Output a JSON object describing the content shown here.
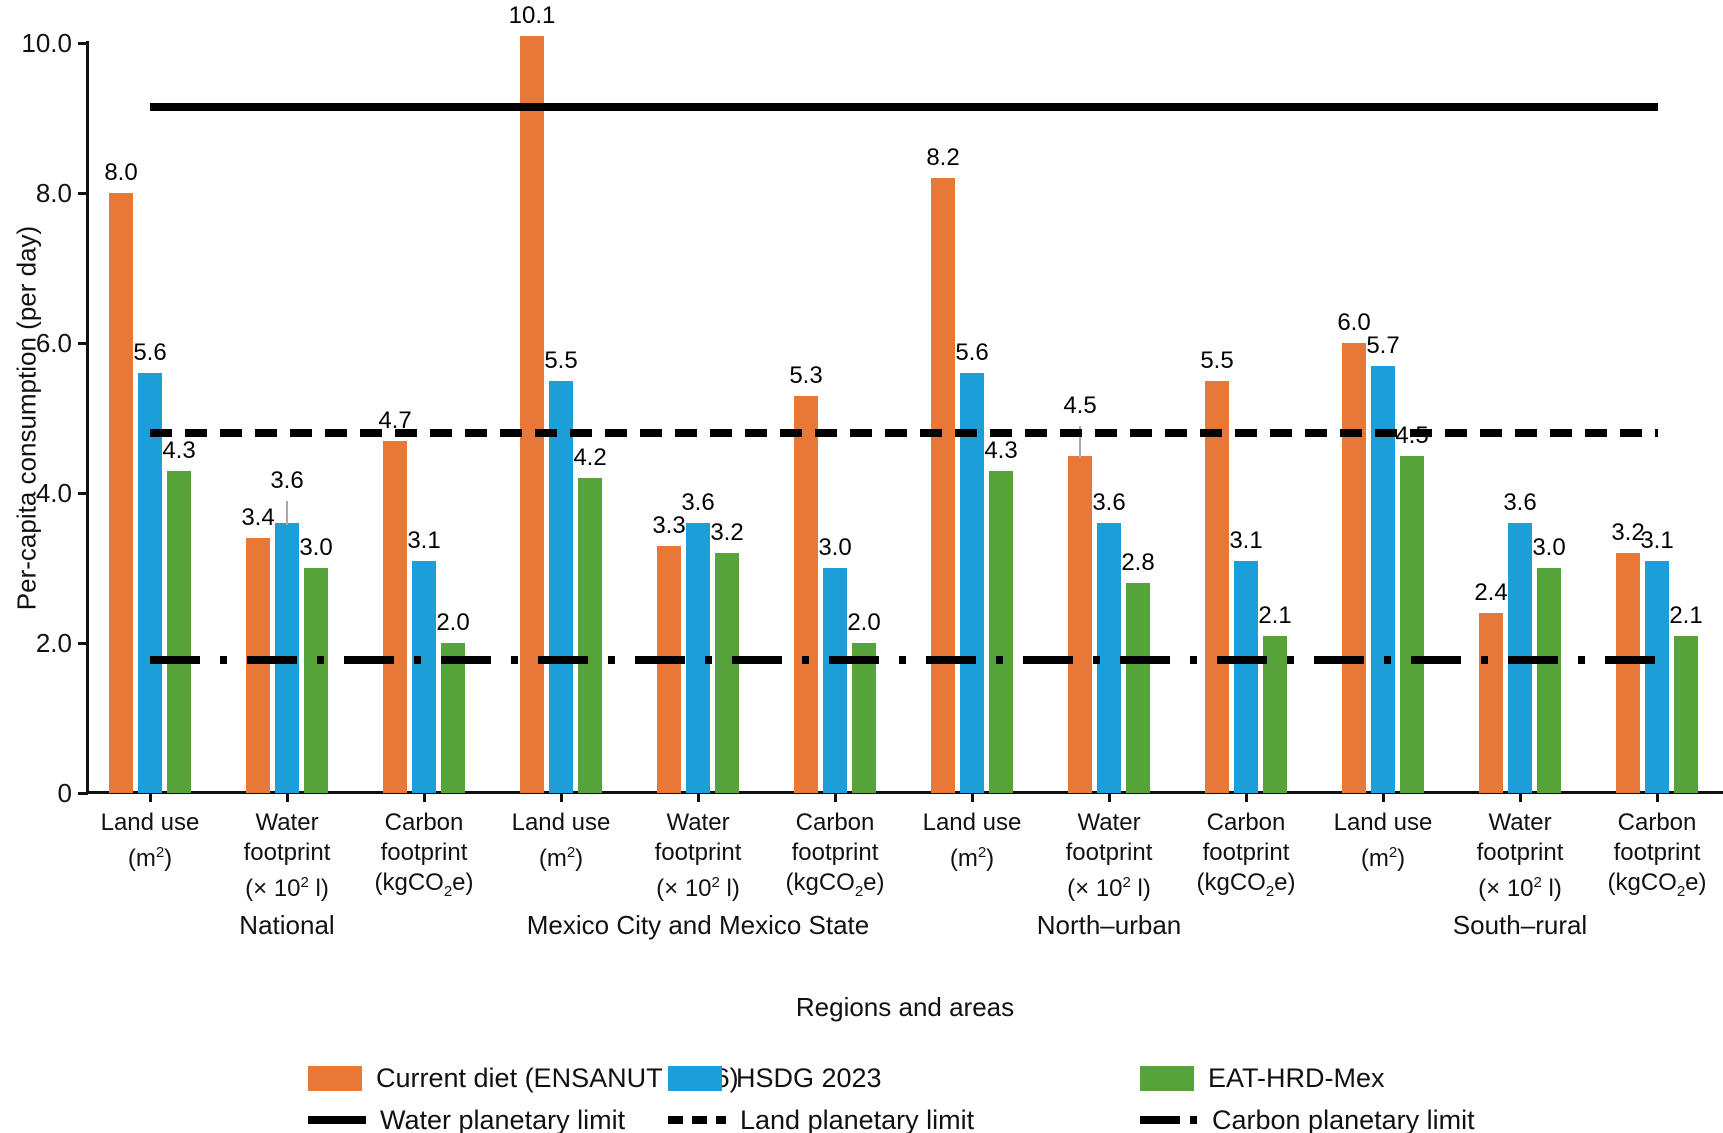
{
  "chart_data": {
    "type": "bar",
    "title": "",
    "ylabel": "Per-capita consumption (per day)",
    "xlabel": "Regions and areas",
    "ylim": [
      0,
      10
    ],
    "ytick_values": [
      0,
      2,
      4,
      6,
      8,
      10
    ],
    "ytick_labels": [
      "0",
      "2.0",
      "4.0",
      "6.0",
      "8.0",
      "10.0"
    ],
    "grid": false,
    "legend_position": "bottom",
    "regions": [
      "National",
      "Mexico City and Mexico State",
      "North–urban",
      "South–rural"
    ],
    "category_labels_per_region": [
      [
        "Land use",
        "(m²)"
      ],
      [
        "Water",
        "footprint",
        "(× 10² l)"
      ],
      [
        "Carbon",
        "footprint",
        "(kgCO₂e)"
      ]
    ],
    "series": [
      {
        "name": "Current diet (ENSANUT 2016)",
        "color": "#E87837",
        "values": [
          8.0,
          3.4,
          4.7,
          10.1,
          3.3,
          5.3,
          8.2,
          4.5,
          5.5,
          6.0,
          2.4,
          3.2
        ]
      },
      {
        "name": "HSDG 2023",
        "color": "#1C9FD9",
        "values": [
          5.6,
          3.6,
          3.1,
          5.5,
          3.6,
          3.0,
          5.6,
          3.6,
          3.1,
          5.7,
          3.6,
          3.1
        ]
      },
      {
        "name": "EAT-HRD-Mex",
        "color": "#55A339",
        "values": [
          4.3,
          3.0,
          2.0,
          4.2,
          3.2,
          2.0,
          4.3,
          2.8,
          2.1,
          4.5,
          3.0,
          2.1
        ]
      }
    ],
    "error_whiskers": [
      {
        "series": 1,
        "category_index": 1,
        "top": 3.9
      },
      {
        "series": 0,
        "category_index": 7,
        "top": 4.9
      }
    ],
    "limit_lines": [
      {
        "name": "Water planetary limit",
        "value": 9.15,
        "style": "solid"
      },
      {
        "name": "Land planetary limit",
        "value": 4.8,
        "style": "dashed"
      },
      {
        "name": "Carbon planetary limit",
        "value": 1.78,
        "style": "dashdot"
      }
    ]
  }
}
